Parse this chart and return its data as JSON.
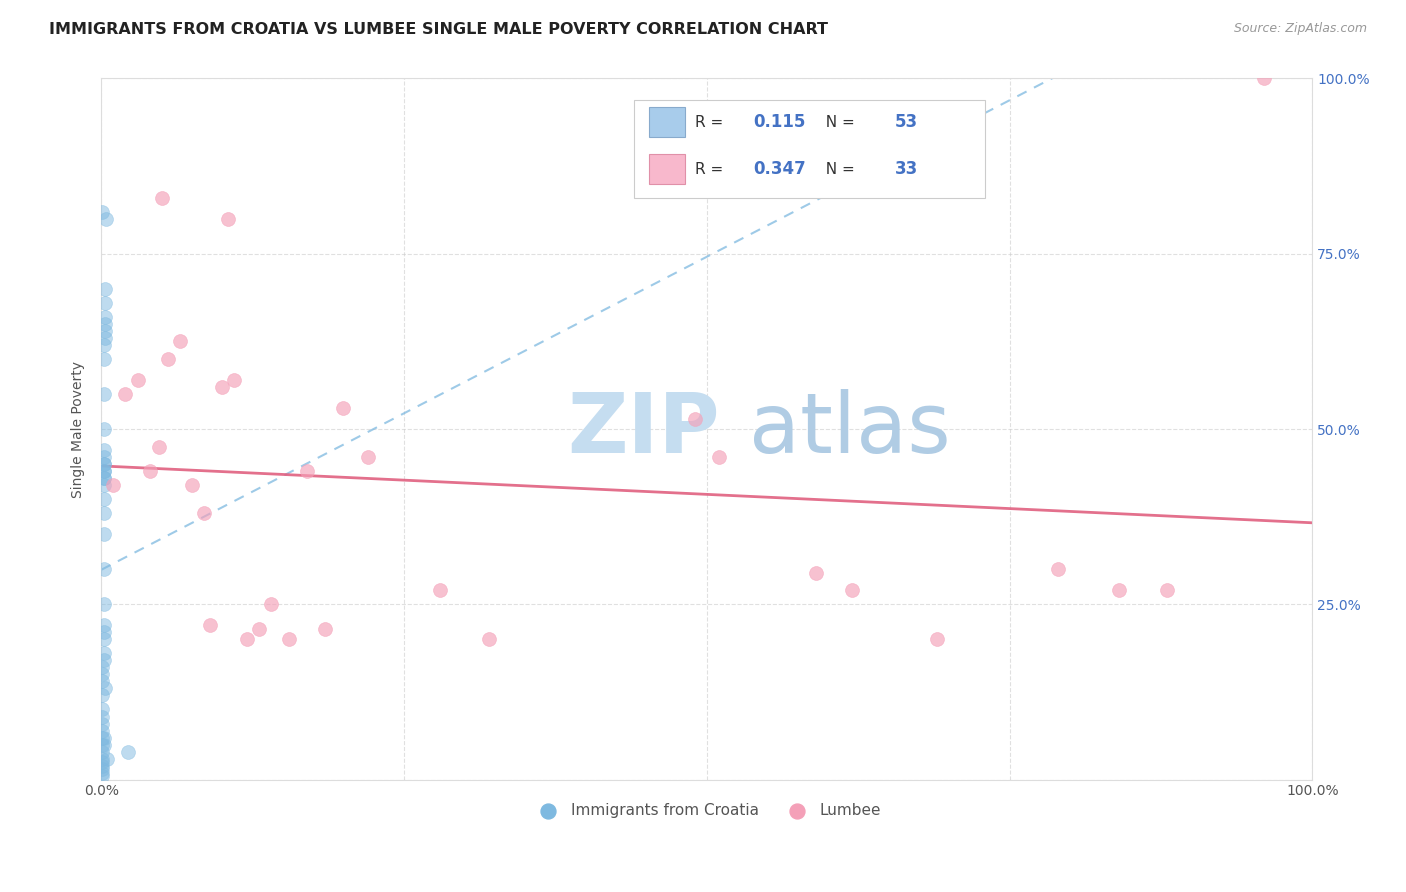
{
  "title": "IMMIGRANTS FROM CROATIA VS LUMBEE SINGLE MALE POVERTY CORRELATION CHART",
  "source": "Source: ZipAtlas.com",
  "ylabel": "Single Male Poverty",
  "r_croatia": "0.115",
  "n_croatia": "53",
  "r_lumbee": "0.347",
  "n_lumbee": "33",
  "legend_croatia": "Immigrants from Croatia",
  "legend_lumbee": "Lumbee",
  "blue_dot_color": "#7eb9e0",
  "pink_dot_color": "#f4a0b8",
  "blue_line_color": "#7eb9e0",
  "pink_line_color": "#e06080",
  "watermark_zip_color": "#c8dff0",
  "watermark_atlas_color": "#b0c8e8",
  "right_tick_color": "#4472c4",
  "croatia_x": [
    0.001,
    0.001,
    0.001,
    0.001,
    0.001,
    0.001,
    0.001,
    0.001,
    0.001,
    0.001,
    0.001,
    0.001,
    0.001,
    0.001,
    0.001,
    0.001,
    0.001,
    0.002,
    0.002,
    0.002,
    0.002,
    0.002,
    0.002,
    0.002,
    0.002,
    0.002,
    0.002,
    0.002,
    0.002,
    0.002,
    0.002,
    0.002,
    0.002,
    0.002,
    0.002,
    0.002,
    0.002,
    0.002,
    0.002,
    0.002,
    0.003,
    0.003,
    0.003,
    0.003,
    0.003,
    0.003,
    0.004,
    0.005,
    0.022,
    0.002,
    0.002,
    0.001,
    0.003
  ],
  "croatia_y": [
    0.005,
    0.01,
    0.015,
    0.02,
    0.025,
    0.03,
    0.04,
    0.05,
    0.06,
    0.07,
    0.08,
    0.09,
    0.1,
    0.12,
    0.14,
    0.15,
    0.16,
    0.17,
    0.18,
    0.2,
    0.21,
    0.22,
    0.25,
    0.3,
    0.35,
    0.38,
    0.4,
    0.42,
    0.43,
    0.44,
    0.45,
    0.44,
    0.43,
    0.45,
    0.46,
    0.47,
    0.5,
    0.55,
    0.6,
    0.62,
    0.63,
    0.64,
    0.65,
    0.66,
    0.68,
    0.7,
    0.8,
    0.03,
    0.04,
    0.05,
    0.06,
    0.81,
    0.13
  ],
  "lumbee_x": [
    0.01,
    0.02,
    0.03,
    0.04,
    0.048,
    0.055,
    0.065,
    0.075,
    0.085,
    0.09,
    0.1,
    0.11,
    0.12,
    0.13,
    0.14,
    0.155,
    0.17,
    0.185,
    0.2,
    0.22,
    0.28,
    0.32,
    0.49,
    0.51,
    0.59,
    0.62,
    0.69,
    0.79,
    0.84,
    0.88,
    0.96,
    0.05,
    0.105
  ],
  "lumbee_y": [
    0.42,
    0.55,
    0.57,
    0.44,
    0.475,
    0.6,
    0.625,
    0.42,
    0.38,
    0.22,
    0.56,
    0.57,
    0.2,
    0.215,
    0.25,
    0.2,
    0.44,
    0.215,
    0.53,
    0.46,
    0.27,
    0.2,
    0.515,
    0.46,
    0.295,
    0.27,
    0.2,
    0.3,
    0.27,
    0.27,
    1.0,
    0.83,
    0.8
  ],
  "xlim": [
    0.0,
    1.0
  ],
  "ylim": [
    0.0,
    1.0
  ],
  "yticks": [
    0.0,
    0.25,
    0.5,
    0.75,
    1.0
  ],
  "xticks": [
    0.0,
    0.25,
    0.5,
    0.75,
    1.0
  ]
}
